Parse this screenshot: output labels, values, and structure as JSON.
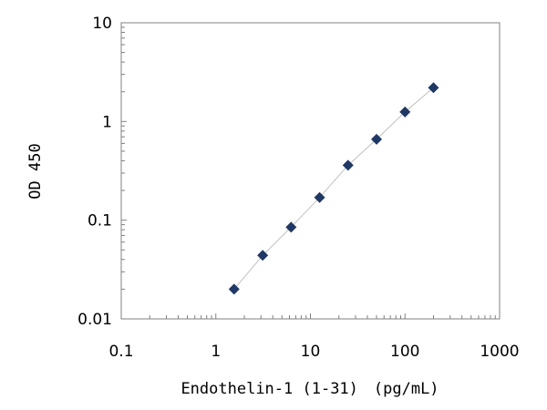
{
  "chart_data": {
    "type": "scatter",
    "title": "",
    "xlabel": "Endothelin-1 (1-31)　(pg/mL)",
    "ylabel": "OD 450",
    "x_scale": "log",
    "y_scale": "log",
    "xlim": [
      0.1,
      1000
    ],
    "ylim": [
      0.01,
      10
    ],
    "grid": false,
    "legend": "none",
    "x_ticks": [
      "0.1",
      "1",
      "10",
      "100",
      "1000"
    ],
    "y_ticks": [
      "0.01",
      "0.1",
      "1",
      "10"
    ],
    "series": [
      {
        "marker": "diamond",
        "color": "#1f3864",
        "line_color": "#bfbfbf",
        "x": [
          1.56,
          3.13,
          6.25,
          12.5,
          25,
          50,
          100,
          200
        ],
        "y": [
          0.02,
          0.044,
          0.085,
          0.17,
          0.36,
          0.66,
          1.25,
          2.2
        ]
      }
    ]
  }
}
